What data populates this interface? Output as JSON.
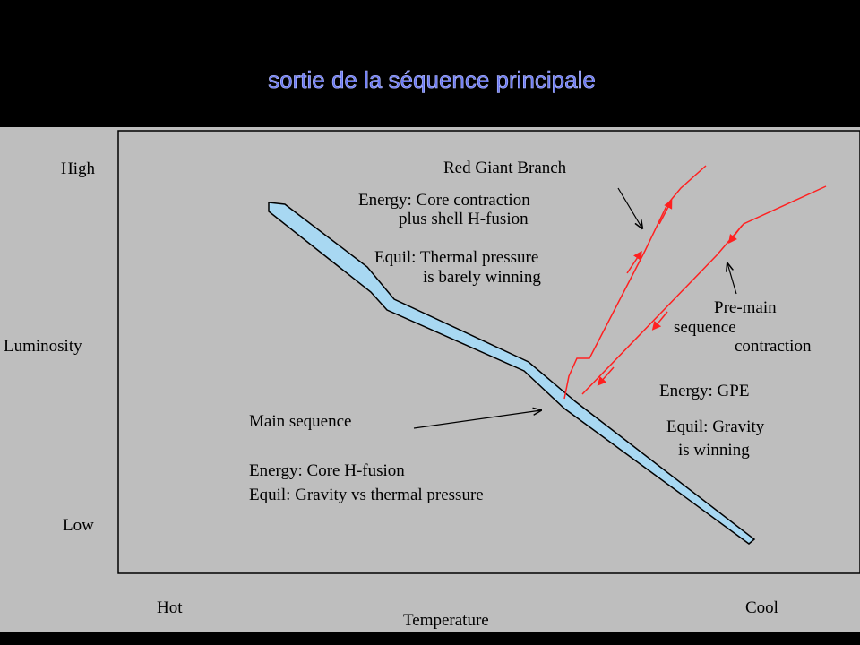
{
  "title": "sortie de la séquence principale",
  "y_axis": {
    "label": "Luminosity",
    "high": "High",
    "low": "Low"
  },
  "x_axis": {
    "label": "Temperature",
    "hot": "Hot",
    "cool": "Cool"
  },
  "red_giant": {
    "title": "Red Giant Branch",
    "lines": [
      "Energy: Core contraction",
      "plus shell H-fusion",
      "Equil: Thermal pressure",
      "is barely winning"
    ]
  },
  "pre_main": {
    "title": [
      "Pre-main",
      "sequence",
      "contraction"
    ],
    "lines": [
      "Energy: GPE",
      "Equil: Gravity",
      "is winning"
    ]
  },
  "main_sequence": {
    "title": "Main sequence",
    "lines": [
      "Energy: Core H-fusion",
      "Equil: Gravity vs thermal pressure"
    ]
  }
}
